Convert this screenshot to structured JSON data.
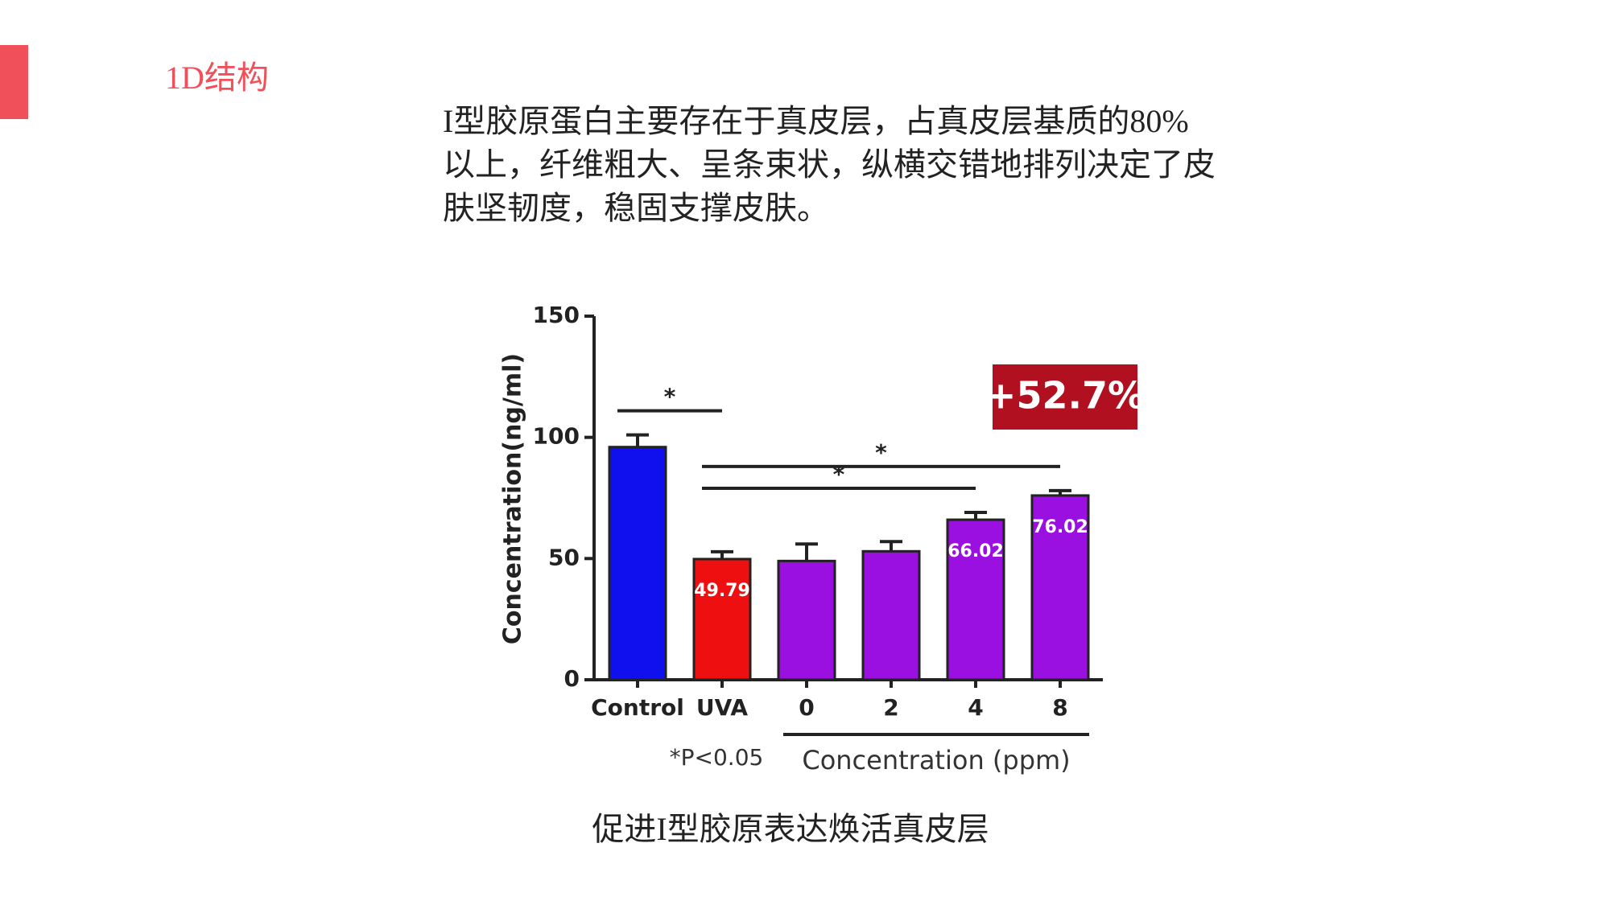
{
  "header": {
    "title": "1D结构"
  },
  "paragraph": "I型胶原蛋白主要存在于真皮层，占真皮层基质的80%以上，纤维粗大、呈条束状，纵横交错地排列决定了皮肤坚韧度，稳固支撑皮肤。",
  "chart_data": {
    "type": "bar",
    "y_label": "Concentration(ng/ml)",
    "categories": [
      "Control",
      "UVA",
      "0",
      "2",
      "4",
      "8"
    ],
    "values": [
      96,
      49.79,
      49,
      53,
      66.02,
      76.02
    ],
    "errors": [
      5,
      3,
      7,
      4,
      3,
      2
    ],
    "value_labels": [
      null,
      "49.79",
      null,
      null,
      "66.02",
      "76.02"
    ],
    "colors": [
      "#1010ee",
      "#ee1010",
      "#9a10e0",
      "#9a10e0",
      "#9a10e0",
      "#9a10e0"
    ],
    "ylim": [
      0,
      150
    ],
    "yticks": [
      0,
      50,
      100,
      150
    ],
    "significance": [
      {
        "from": 0,
        "to": 1,
        "label": "*"
      },
      {
        "from": 1,
        "to": 5,
        "label": "*"
      },
      {
        "from": 1,
        "to": 4,
        "label": "*"
      }
    ],
    "group_label": "Concentration (ppm)",
    "footnote": "*P<0.05",
    "annotation": "+52.7%"
  },
  "caption": "促进I型胶原表达焕活真皮层"
}
